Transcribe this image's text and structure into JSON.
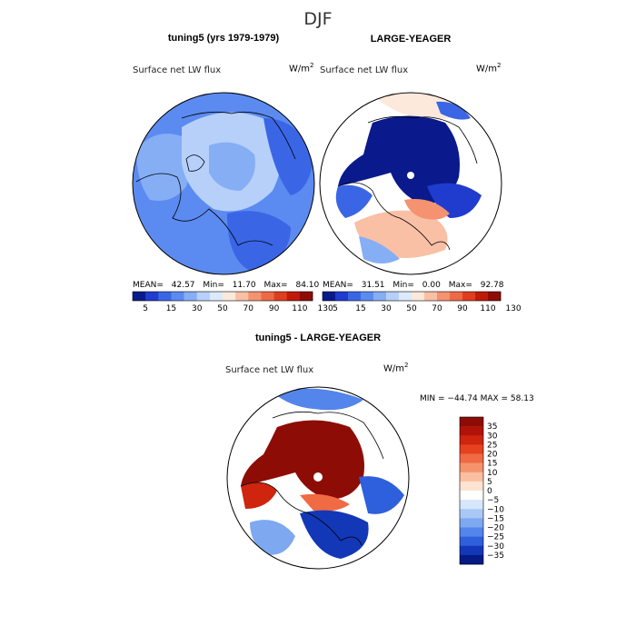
{
  "figure": {
    "title": "DJF"
  },
  "panels": [
    {
      "header": "tuning5 (yrs 1979-1979)",
      "variable": "Surface net LW flux",
      "units": "W/m",
      "units_exp": "2",
      "stats": {
        "mean_label": "MEAN=",
        "mean": "42.57",
        "min_label": "Min=",
        "min": "11.70",
        "max_label": "Max=",
        "max": "84.10"
      }
    },
    {
      "header": "LARGE-YEAGER",
      "variable": "Surface net LW flux",
      "units": "W/m",
      "units_exp": "2",
      "stats": {
        "mean_label": "MEAN=",
        "mean": "31.51",
        "min_label": "Min=",
        "min": "0.00",
        "max_label": "Max=",
        "max": "92.78"
      }
    },
    {
      "header": "tuning5 - LARGE-YEAGER",
      "variable": "Surface net LW flux",
      "units": "W/m",
      "units_exp": "2",
      "minmax_text": "MIN = −44.74  MAX =  58.13"
    }
  ],
  "chart_data": [
    {
      "type": "heatmap",
      "projection": "polar stereographic (north pole)",
      "title": "tuning5 (yrs 1979-1979)",
      "subtitle": "Surface net LW flux",
      "units": "W/m^2",
      "stats": {
        "mean": 42.57,
        "min": 11.7,
        "max": 84.1
      },
      "colorbar": {
        "orientation": "horizontal",
        "tick_labels": [
          "5",
          "15",
          "30",
          "50",
          "70",
          "90",
          "110",
          "130"
        ],
        "colors": [
          "#0a1a8c",
          "#1f3ccf",
          "#3a66e6",
          "#5b8bf0",
          "#86aef5",
          "#b6d0fa",
          "#dde9fc",
          "#fde8dc",
          "#f9c0a6",
          "#f59270",
          "#ee6a46",
          "#de3e1f",
          "#c01a0a",
          "#8e0c06"
        ]
      }
    },
    {
      "type": "heatmap",
      "projection": "polar stereographic (north pole)",
      "title": "LARGE-YEAGER",
      "subtitle": "Surface net LW flux",
      "units": "W/m^2",
      "stats": {
        "mean": 31.51,
        "min": 0.0,
        "max": 92.78
      },
      "colorbar": {
        "orientation": "horizontal",
        "tick_labels": [
          "5",
          "15",
          "30",
          "50",
          "70",
          "90",
          "110",
          "130"
        ],
        "colors": [
          "#0a1a8c",
          "#1f3ccf",
          "#3a66e6",
          "#5b8bf0",
          "#86aef5",
          "#b6d0fa",
          "#dde9fc",
          "#fde8dc",
          "#f9c0a6",
          "#f59270",
          "#ee6a46",
          "#de3e1f",
          "#c01a0a",
          "#8e0c06"
        ]
      }
    },
    {
      "type": "heatmap",
      "projection": "polar stereographic (north pole)",
      "title": "tuning5 - LARGE-YEAGER",
      "subtitle": "Surface net LW flux",
      "units": "W/m^2",
      "stats": {
        "min": -44.74,
        "max": 58.13
      },
      "colorbar": {
        "orientation": "vertical",
        "tick_labels": [
          "35",
          "30",
          "25",
          "20",
          "15",
          "10",
          "5",
          "0",
          "−5",
          "−10",
          "−15",
          "−20",
          "−25",
          "−30",
          "−35"
        ],
        "colors": [
          "#8e0c06",
          "#b01408",
          "#cf240e",
          "#e6421f",
          "#f06a44",
          "#f5936c",
          "#f9bfa0",
          "#fde3d2",
          "#ffffff",
          "#d6e6fb",
          "#a9c8f6",
          "#7ea9f1",
          "#5485ea",
          "#2e5fdc",
          "#1238b8",
          "#061a86"
        ]
      }
    }
  ]
}
